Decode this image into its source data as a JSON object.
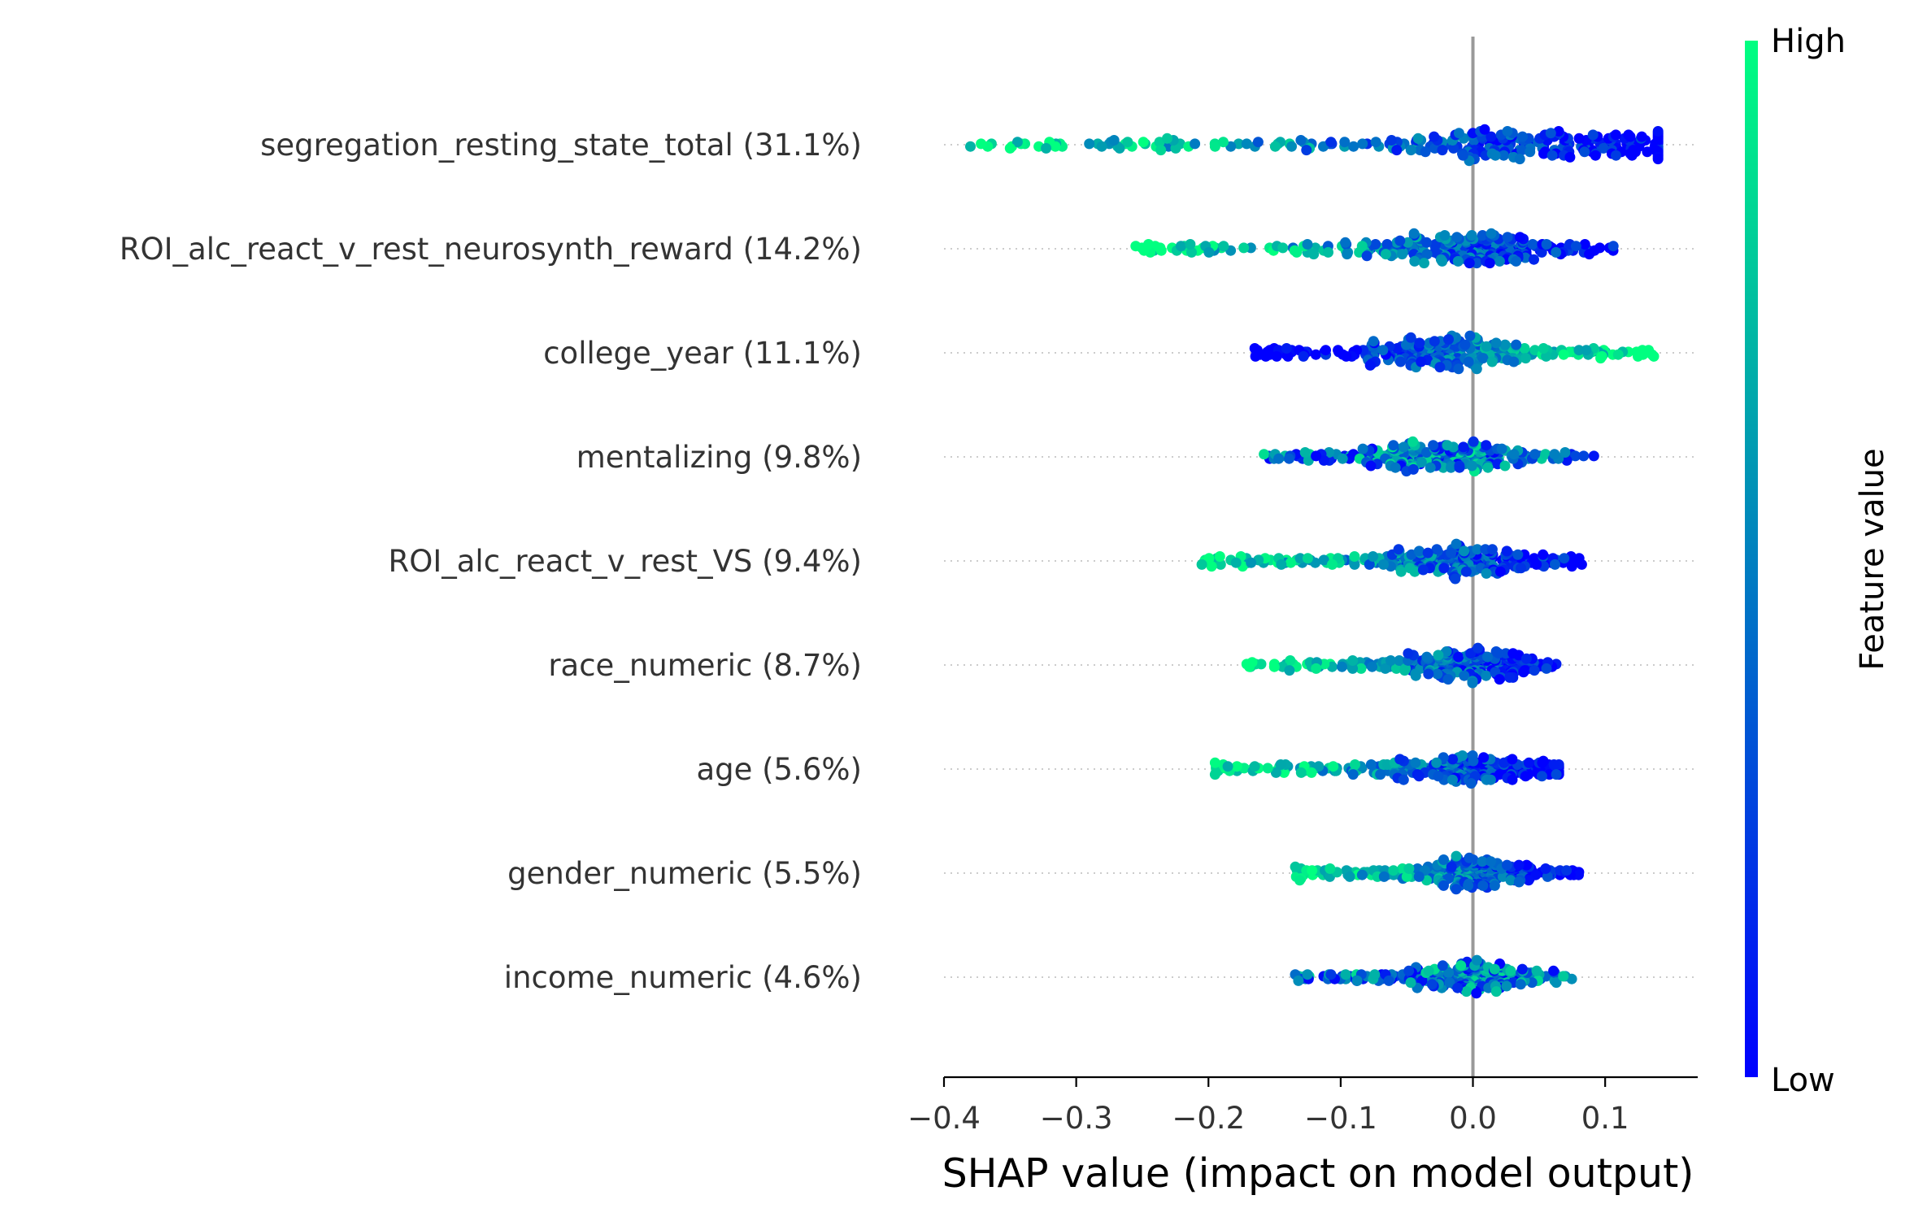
{
  "chart_data": {
    "type": "scatter",
    "subtype": "shap-beeswarm",
    "xlabel": "SHAP value (impact on model output)",
    "xlim": [
      -0.4,
      0.17
    ],
    "xticks": [
      -0.4,
      -0.3,
      -0.2,
      -0.1,
      0.0,
      0.1
    ],
    "xtick_labels": [
      "−0.4",
      "−0.3",
      "−0.2",
      "−0.1",
      "0.0",
      "0.1"
    ],
    "zero_line": true,
    "grid": false,
    "colorbar": {
      "title": "Feature value",
      "high_label": "High",
      "low_label": "Low",
      "high_color": "#00ff80",
      "low_color": "#0000ff"
    },
    "features": [
      {
        "label": "segregation_resting_state_total (31.1%)",
        "min": -0.38,
        "max": 0.14,
        "peak": 0.05,
        "high_side": "negative",
        "outliers": [
          -0.38,
          -0.35
        ]
      },
      {
        "label": "ROI_alc_react_v_rest_neurosynth_reward (14.2%)",
        "min": -0.255,
        "max": 0.11,
        "peak": -0.01,
        "high_side": "negative",
        "outliers": [
          -0.255
        ]
      },
      {
        "label": "college_year (11.1%)",
        "min": -0.165,
        "max": 0.145,
        "peak": -0.02,
        "high_side": "positive",
        "outliers": [
          -0.165
        ]
      },
      {
        "label": "mentalizing (9.8%)",
        "min": -0.16,
        "max": 0.095,
        "peak": -0.02,
        "high_side": "mixed",
        "outliers": []
      },
      {
        "label": "ROI_alc_react_v_rest_VS (9.4%)",
        "min": -0.205,
        "max": 0.085,
        "peak": -0.01,
        "high_side": "negative",
        "outliers": [
          -0.205
        ]
      },
      {
        "label": "race_numeric (8.7%)",
        "min": -0.175,
        "max": 0.065,
        "peak": 0.0,
        "high_side": "negative",
        "outliers": []
      },
      {
        "label": "age (5.6%)",
        "min": -0.195,
        "max": 0.065,
        "peak": 0.0,
        "high_side": "negative",
        "outliers": [
          -0.195,
          -0.165
        ]
      },
      {
        "label": "gender_numeric (5.5%)",
        "min": -0.135,
        "max": 0.085,
        "peak": 0.0,
        "high_side": "negative",
        "outliers": []
      },
      {
        "label": "income_numeric (4.6%)",
        "min": -0.135,
        "max": 0.075,
        "peak": 0.0,
        "high_side": "mixed",
        "outliers": []
      }
    ]
  }
}
